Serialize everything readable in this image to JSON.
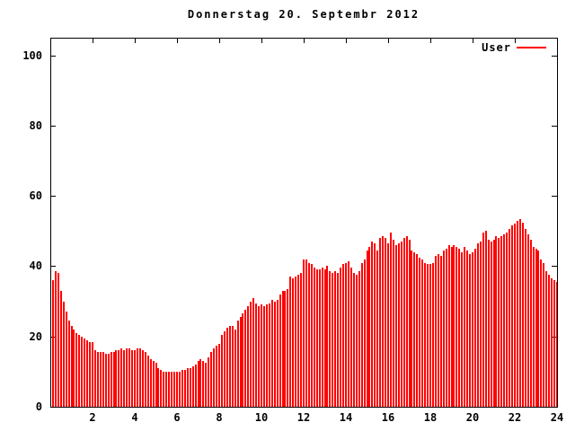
{
  "chart": {
    "title": "Donnerstag 20. Septembr 2012",
    "legend_label": "User"
  },
  "chart_data": {
    "type": "bar",
    "style": "impulses",
    "title": "Donnerstag 20. Septembr 2012",
    "xlabel": "",
    "ylabel": "",
    "xlim": [
      0,
      24
    ],
    "ylim": [
      0,
      105
    ],
    "x_ticks": [
      2,
      4,
      6,
      8,
      10,
      12,
      14,
      16,
      18,
      20,
      22,
      24
    ],
    "y_ticks": [
      0,
      20,
      40,
      60,
      80,
      100
    ],
    "grid": false,
    "legend_position": "top-right-inside",
    "colors": {
      "bar": "#ff0000",
      "axis": "#000000",
      "background": "#ffffff"
    },
    "series": [
      {
        "name": "User",
        "color": "#ff0000",
        "t_start_hours": 0.125,
        "t_step_hours": 0.125,
        "values": [
          36,
          38.5,
          38,
          33,
          30,
          27,
          24.5,
          23,
          22,
          21,
          20.5,
          20,
          19.5,
          19,
          18.5,
          18.5,
          16,
          15.5,
          15.5,
          15.5,
          15,
          15,
          15.5,
          15.5,
          16,
          16,
          16.5,
          16,
          16.5,
          16.5,
          16,
          16,
          16.5,
          16.5,
          16,
          15.5,
          14.5,
          13.5,
          13,
          12.5,
          11,
          10.5,
          10,
          10,
          10,
          10,
          10,
          10,
          10,
          10.5,
          10.5,
          11,
          11,
          11.5,
          12,
          13,
          13.5,
          13,
          12.5,
          14,
          15.5,
          16.5,
          17.5,
          18,
          20.5,
          21.5,
          22.5,
          23,
          23,
          22,
          24.5,
          25.5,
          26.5,
          27.5,
          28.5,
          30,
          31,
          29.5,
          28.5,
          29,
          28.5,
          29,
          29.5,
          30.5,
          30,
          30.5,
          32,
          33,
          33,
          33.5,
          37,
          36.5,
          37,
          37.5,
          38,
          42,
          42,
          41,
          40.5,
          39.5,
          39,
          39,
          39.5,
          39,
          40,
          38.5,
          38,
          38.5,
          38,
          39.5,
          40.5,
          41,
          41.5,
          39.5,
          38,
          37.5,
          38.5,
          41,
          42,
          44.5,
          45.5,
          47,
          46.5,
          44.5,
          48,
          48.5,
          48,
          46.5,
          49.5,
          47.5,
          46,
          46.5,
          47,
          48,
          48.5,
          47.5,
          44.5,
          44,
          43.5,
          42.5,
          42,
          41,
          40.5,
          40.5,
          41,
          43,
          43.5,
          43,
          44.5,
          45,
          46,
          45.5,
          46,
          45.5,
          45,
          44,
          45.5,
          44.5,
          43.5,
          44,
          45,
          46.5,
          47,
          49.5,
          50,
          47.5,
          47,
          47.5,
          48.5,
          48,
          48.5,
          49,
          49.5,
          50.5,
          51.5,
          52,
          53,
          53.5,
          52.5,
          50.5,
          49,
          47.5,
          45.5,
          45,
          44.5,
          42,
          41,
          38.5,
          37.5,
          36.5,
          36,
          35.5
        ]
      }
    ]
  }
}
